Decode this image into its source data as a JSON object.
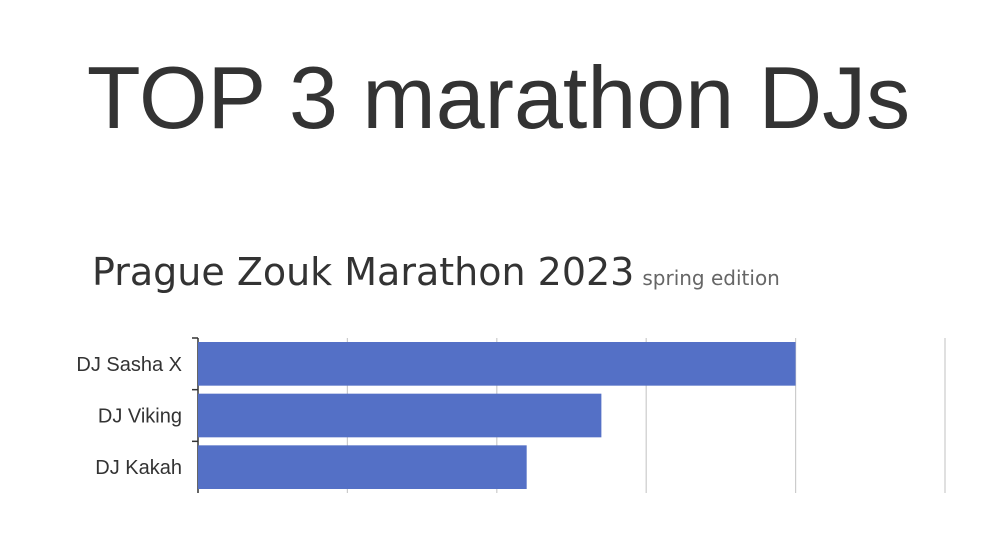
{
  "title": "TOP 3 marathon DJs",
  "chart_data": {
    "type": "bar",
    "orientation": "horizontal",
    "title": "Prague Zouk Marathon 2023",
    "subtitle": "spring edition",
    "categories": [
      "DJ Sasha X",
      "DJ Viking",
      "DJ Kakah"
    ],
    "values": [
      4,
      2.7,
      2.2
    ],
    "xlim": [
      0,
      5
    ],
    "grid": true,
    "bar_color": "#5470C6",
    "xlabel": "",
    "ylabel": ""
  }
}
